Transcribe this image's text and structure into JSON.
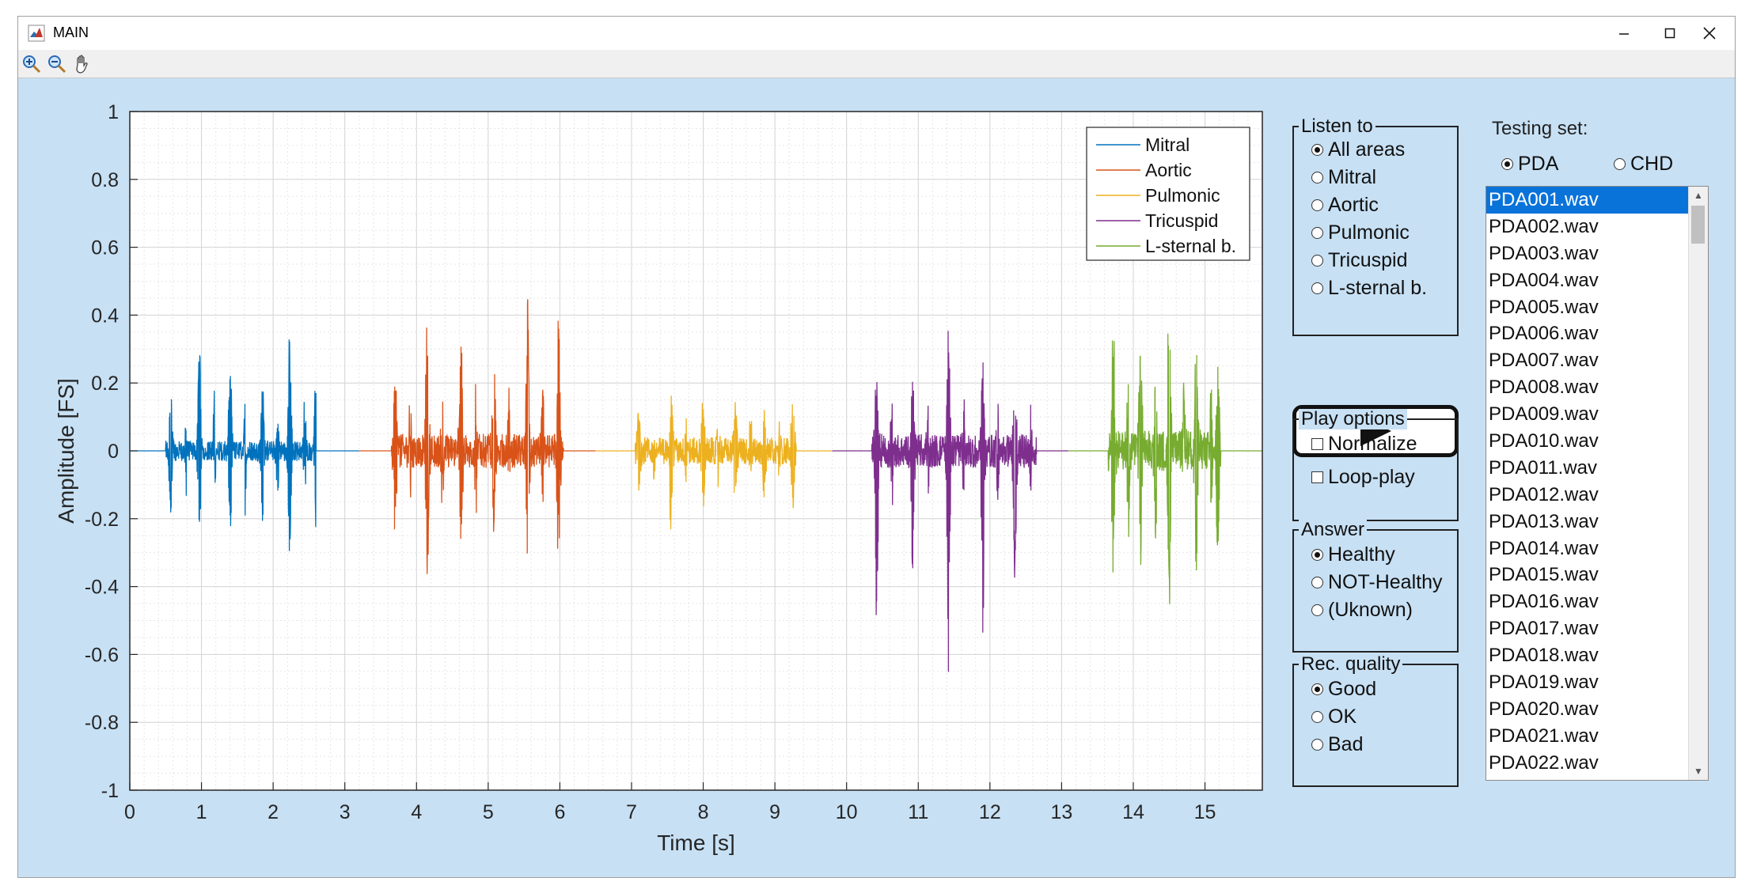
{
  "window": {
    "title": "MAIN"
  },
  "chart_data": {
    "type": "line",
    "xlabel": "Time [s]",
    "ylabel": "Amplitude [FS]",
    "xlim": [
      0,
      15.8
    ],
    "ylim": [
      -1,
      1
    ],
    "xticks": [
      0,
      1,
      2,
      3,
      4,
      5,
      6,
      7,
      8,
      9,
      10,
      11,
      12,
      13,
      14,
      15
    ],
    "yticks": [
      1,
      0.8,
      0.6,
      0.4,
      0.2,
      0,
      -0.2,
      -0.4,
      -0.6,
      -0.8,
      -1
    ],
    "ytick_labels": [
      "1",
      "0.8",
      "0.6",
      "0.4",
      "0.2",
      "0",
      "-0.2",
      "-0.4",
      "-0.6",
      "-0.8",
      "-1"
    ],
    "grid": true,
    "minor_grid": true,
    "legend_position": "top-right",
    "series": [
      {
        "name": "Mitral",
        "color": "#0072bd",
        "x_range": [
          0,
          3.2
        ],
        "active": [
          0.5,
          2.6
        ],
        "beats": [
          0.57,
          0.97,
          1.4,
          1.85,
          2.23,
          2.6
        ],
        "peak_pos": 0.36,
        "peak_neg": -0.35,
        "noise": 0.03
      },
      {
        "name": "Aortic",
        "color": "#d95319",
        "x_range": [
          3.2,
          6.5
        ],
        "active": [
          3.65,
          6.05
        ],
        "beats": [
          3.7,
          4.15,
          4.62,
          5.08,
          5.55,
          5.98
        ],
        "peak_pos": 0.43,
        "peak_neg": -0.4,
        "noise": 0.05
      },
      {
        "name": "Pulmonic",
        "color": "#edb120",
        "x_range": [
          6.5,
          9.8
        ],
        "active": [
          7.05,
          9.3
        ],
        "beats": [
          7.1,
          7.55,
          8.0,
          8.45,
          8.85,
          9.25
        ],
        "peak_pos": 0.2,
        "peak_neg": -0.22,
        "noise": 0.04
      },
      {
        "name": "Tricuspid",
        "color": "#7e2f8e",
        "x_range": [
          9.8,
          13.1
        ],
        "active": [
          10.35,
          12.65
        ],
        "beats": [
          10.42,
          10.92,
          11.42,
          11.9,
          12.35
        ],
        "peak_pos": 0.4,
        "peak_neg": -0.74,
        "noise": 0.05
      },
      {
        "name": "L-sternal b.",
        "color": "#77ac30",
        "x_range": [
          13.1,
          15.8
        ],
        "active": [
          13.65,
          15.22
        ],
        "beats": [
          13.72,
          14.1,
          14.5,
          14.88,
          15.18
        ],
        "peak_pos": 0.55,
        "peak_neg": -0.5,
        "noise": 0.06
      }
    ]
  },
  "listen_to": {
    "title": "Listen to",
    "options": [
      "All areas",
      "Mitral",
      "Aortic",
      "Pulmonic",
      "Tricuspid",
      "L-sternal b."
    ],
    "selected": 0
  },
  "play_button": {
    "icon": "play-icon"
  },
  "play_options": {
    "title": "Play options",
    "options": [
      "Normalize",
      "Loop-play"
    ]
  },
  "answer": {
    "title": "Answer",
    "options": [
      "Healthy",
      "NOT-Healthy",
      "(Uknown)"
    ],
    "selected": 0
  },
  "rec_quality": {
    "title": "Rec. quality",
    "options": [
      "Good",
      "OK",
      "Bad"
    ],
    "selected": 0
  },
  "testing_set": {
    "label": "Testing set:",
    "options": [
      "PDA",
      "CHD"
    ],
    "selected": 0,
    "files": [
      "PDA001.wav",
      "PDA002.wav",
      "PDA003.wav",
      "PDA004.wav",
      "PDA005.wav",
      "PDA006.wav",
      "PDA007.wav",
      "PDA008.wav",
      "PDA009.wav",
      "PDA010.wav",
      "PDA011.wav",
      "PDA012.wav",
      "PDA013.wav",
      "PDA014.wav",
      "PDA015.wav",
      "PDA016.wav",
      "PDA017.wav",
      "PDA018.wav",
      "PDA019.wav",
      "PDA020.wav",
      "PDA021.wav",
      "PDA022.wav"
    ],
    "selected_file": 0
  }
}
